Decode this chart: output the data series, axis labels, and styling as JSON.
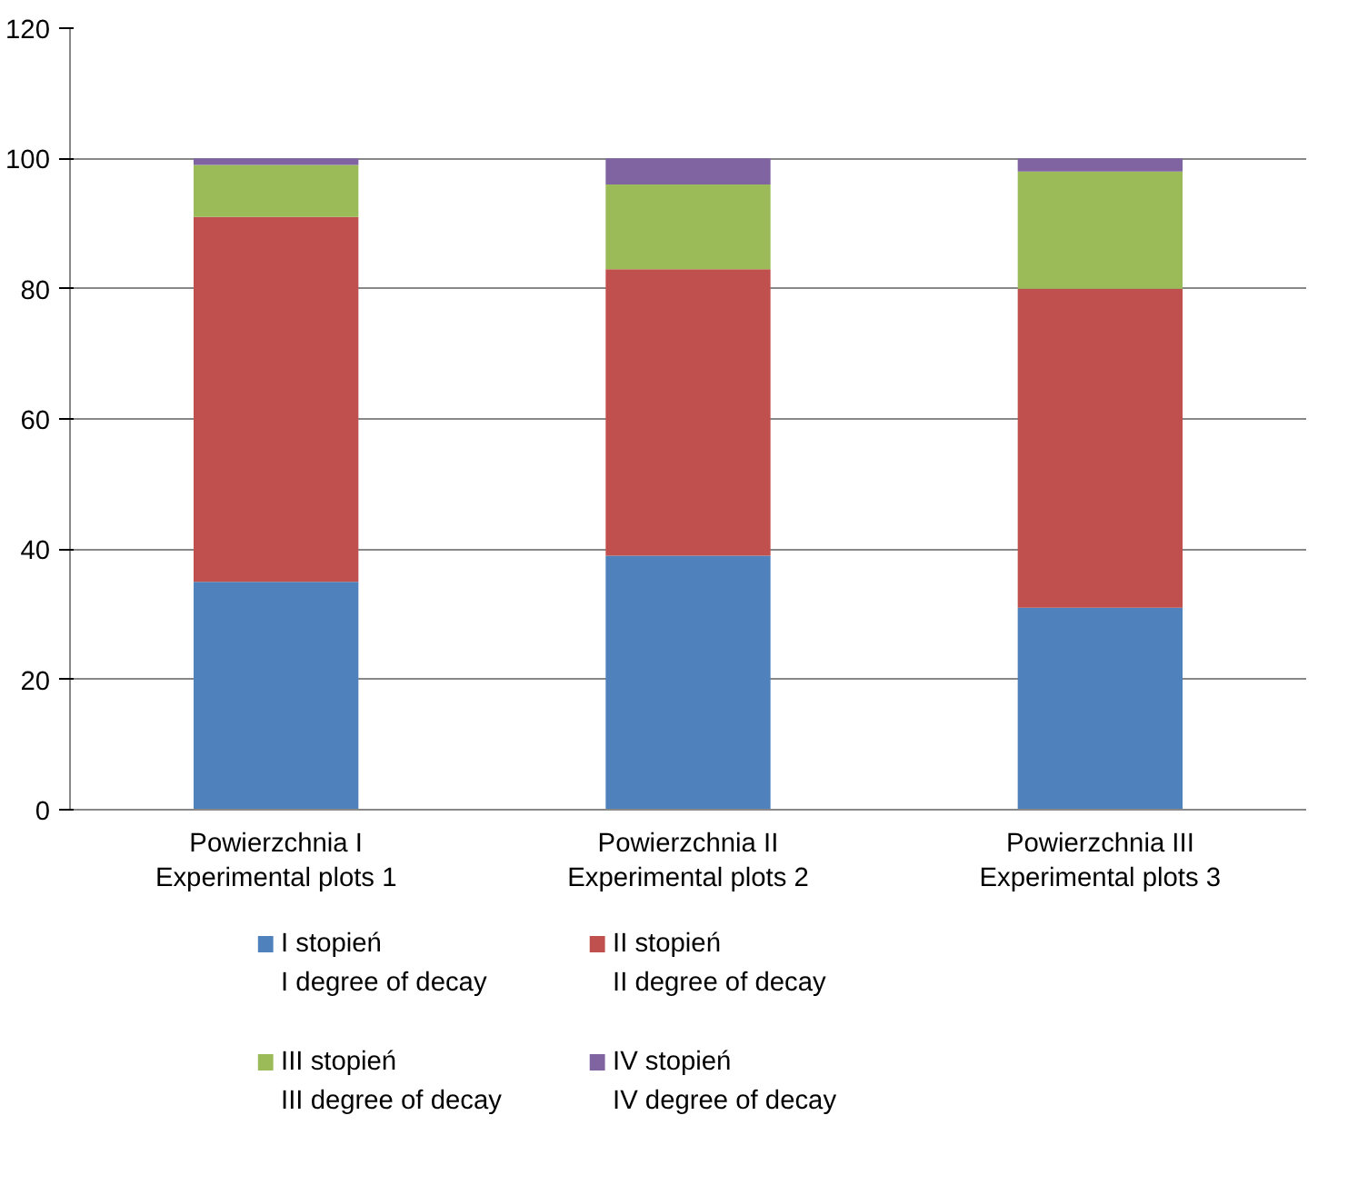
{
  "chart_data": {
    "type": "bar",
    "stacked": true,
    "categories": [
      "Powierzchnia I\nExperimental plots 1",
      "Powierzchnia II\nExperimental plots 2",
      "Powierzchnia III\nExperimental plots 3"
    ],
    "series": [
      {
        "name": "I stopień\nI degree of decay",
        "color": "#4f81bd",
        "values": [
          35,
          39,
          31
        ]
      },
      {
        "name": "II stopień\nII degree of decay",
        "color": "#c0504d",
        "values": [
          56,
          44,
          49
        ]
      },
      {
        "name": "III stopień\nIII degree of decay",
        "color": "#9bbb59",
        "values": [
          8,
          13,
          18
        ]
      },
      {
        "name": "IV stopień\nIV degree of decay",
        "color": "#8064a2",
        "values": [
          1,
          4,
          2
        ]
      }
    ],
    "ylim": [
      0,
      120
    ],
    "yticks": [
      0,
      20,
      40,
      60,
      80,
      100,
      120
    ],
    "grid": "y",
    "legend": "bottom"
  }
}
